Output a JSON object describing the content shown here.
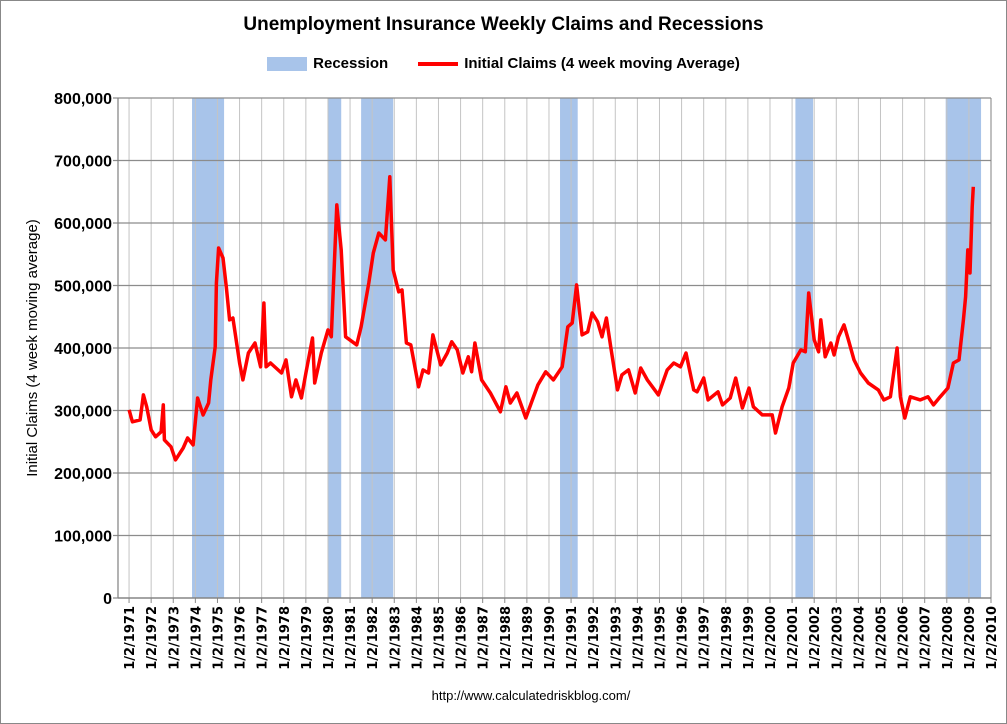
{
  "chart_data": {
    "type": "line",
    "title": "Unemployment Insurance Weekly Claims and Recessions",
    "xlabel": "",
    "ylabel": "Initial Claims (4 week moving average)",
    "xlim": [
      1970.5,
      2010
    ],
    "ylim": [
      0,
      800000
    ],
    "grid": true,
    "legend_placement": "top-center",
    "legend": [
      {
        "name": "Recession",
        "type": "band",
        "color": "#a8c4ea"
      },
      {
        "name": "Initial Claims (4 week moving Average)",
        "type": "line",
        "color": "#ff0000"
      }
    ],
    "y_ticks": [
      "0",
      "100,000",
      "200,000",
      "300,000",
      "400,000",
      "500,000",
      "600,000",
      "700,000",
      "800,000"
    ],
    "y_tick_values": [
      0,
      100000,
      200000,
      300000,
      400000,
      500000,
      600000,
      700000,
      800000
    ],
    "x_ticks": [
      "1/2/1971",
      "1/2/1972",
      "1/2/1973",
      "1/2/1974",
      "1/2/1975",
      "1/2/1976",
      "1/2/1977",
      "1/2/1978",
      "1/2/1979",
      "1/2/1980",
      "1/2/1981",
      "1/2/1982",
      "1/2/1983",
      "1/2/1984",
      "1/2/1985",
      "1/2/1986",
      "1/2/1987",
      "1/2/1988",
      "1/2/1989",
      "1/2/1990",
      "1/2/1991",
      "1/2/1992",
      "1/2/1993",
      "1/2/1994",
      "1/2/1995",
      "1/2/1996",
      "1/2/1997",
      "1/2/1998",
      "1/2/1999",
      "1/2/2000",
      "1/2/2001",
      "1/2/2002",
      "1/2/2003",
      "1/2/2004",
      "1/2/2005",
      "1/2/2006",
      "1/2/2007",
      "1/2/2008",
      "1/2/2009",
      "1/2/2010"
    ],
    "recessions": [
      [
        1973.85,
        1975.3
      ],
      [
        1980.0,
        1980.6
      ],
      [
        1981.5,
        1982.95
      ],
      [
        1990.5,
        1991.3
      ],
      [
        2001.15,
        2001.95
      ],
      [
        2007.95,
        2009.55
      ]
    ],
    "series": [
      {
        "name": "Initial Claims (4 week moving Average)",
        "x": [
          1971.0,
          1971.15,
          1971.5,
          1971.65,
          1971.8,
          1972.0,
          1972.2,
          1972.45,
          1972.55,
          1972.6,
          1972.9,
          1973.1,
          1973.45,
          1973.65,
          1973.9,
          1974.1,
          1974.35,
          1974.6,
          1974.7,
          1974.9,
          1974.95,
          1975.05,
          1975.25,
          1975.4,
          1975.55,
          1975.7,
          1976.0,
          1976.15,
          1976.4,
          1976.7,
          1976.95,
          1977.1,
          1977.2,
          1977.4,
          1977.9,
          1978.1,
          1978.35,
          1978.55,
          1978.8,
          1979.0,
          1979.3,
          1979.4,
          1979.7,
          1980.0,
          1980.15,
          1980.4,
          1980.6,
          1980.8,
          1981.3,
          1981.5,
          1981.85,
          1982.05,
          1982.3,
          1982.6,
          1982.8,
          1982.95,
          1983.2,
          1983.35,
          1983.55,
          1983.75,
          1984.1,
          1984.3,
          1984.55,
          1984.75,
          1985.1,
          1985.4,
          1985.6,
          1985.85,
          1986.1,
          1986.35,
          1986.5,
          1986.65,
          1986.95,
          1987.35,
          1987.8,
          1988.05,
          1988.25,
          1988.55,
          1988.95,
          1989.25,
          1989.5,
          1989.85,
          1990.2,
          1990.6,
          1990.85,
          1991.05,
          1991.25,
          1991.5,
          1991.75,
          1991.95,
          1992.2,
          1992.4,
          1992.6,
          1992.8,
          1993.1,
          1993.3,
          1993.6,
          1993.9,
          1994.15,
          1994.45,
          1994.95,
          1995.35,
          1995.65,
          1995.95,
          1996.2,
          1996.55,
          1996.7,
          1997.0,
          1997.2,
          1997.65,
          1997.85,
          1998.2,
          1998.45,
          1998.75,
          1999.05,
          1999.25,
          1999.65,
          2000.1,
          2000.25,
          2000.55,
          2000.85,
          2001.05,
          2001.4,
          2001.6,
          2001.75,
          2002.0,
          2002.2,
          2002.3,
          2002.5,
          2002.75,
          2002.9,
          2003.1,
          2003.35,
          2003.55,
          2003.8,
          2004.1,
          2004.45,
          2004.9,
          2005.15,
          2005.45,
          2005.75,
          2005.9,
          2006.1,
          2006.35,
          2006.8,
          2007.15,
          2007.4,
          2007.7,
          2008.05,
          2008.3,
          2008.55,
          2008.75,
          2008.85,
          2008.95,
          2009.05,
          2009.15,
          2009.2
        ],
        "values": [
          301000,
          282000,
          285000,
          325000,
          306000,
          269000,
          258000,
          266000,
          309000,
          253000,
          242000,
          221000,
          240000,
          256000,
          245000,
          320000,
          293000,
          312000,
          349000,
          402000,
          504000,
          560000,
          544000,
          498000,
          445000,
          448000,
          376000,
          349000,
          392000,
          408000,
          370000,
          472000,
          370000,
          376000,
          360000,
          381000,
          322000,
          349000,
          320000,
          360000,
          416000,
          344000,
          392000,
          429000,
          418000,
          629000,
          557000,
          418000,
          405000,
          434000,
          504000,
          552000,
          584000,
          573000,
          674000,
          525000,
          490000,
          493000,
          408000,
          405000,
          338000,
          365000,
          360000,
          421000,
          373000,
          392000,
          410000,
          397000,
          360000,
          386000,
          362000,
          408000,
          349000,
          328000,
          298000,
          338000,
          312000,
          328000,
          288000,
          317000,
          341000,
          362000,
          349000,
          370000,
          434000,
          440000,
          501000,
          421000,
          426000,
          456000,
          442000,
          418000,
          448000,
          400000,
          333000,
          357000,
          365000,
          328000,
          368000,
          349000,
          325000,
          365000,
          376000,
          370000,
          392000,
          333000,
          330000,
          352000,
          317000,
          330000,
          309000,
          320000,
          352000,
          304000,
          336000,
          306000,
          293000,
          293000,
          264000,
          306000,
          336000,
          376000,
          397000,
          394000,
          488000,
          413000,
          394000,
          445000,
          386000,
          408000,
          389000,
          418000,
          437000,
          413000,
          381000,
          360000,
          344000,
          333000,
          317000,
          322000,
          400000,
          322000,
          288000,
          322000,
          317000,
          322000,
          309000,
          322000,
          336000,
          376000,
          381000,
          445000,
          482000,
          557000,
          520000,
          626000,
          658000
        ]
      }
    ]
  },
  "url": "http://www.calculatedriskblog.com/"
}
